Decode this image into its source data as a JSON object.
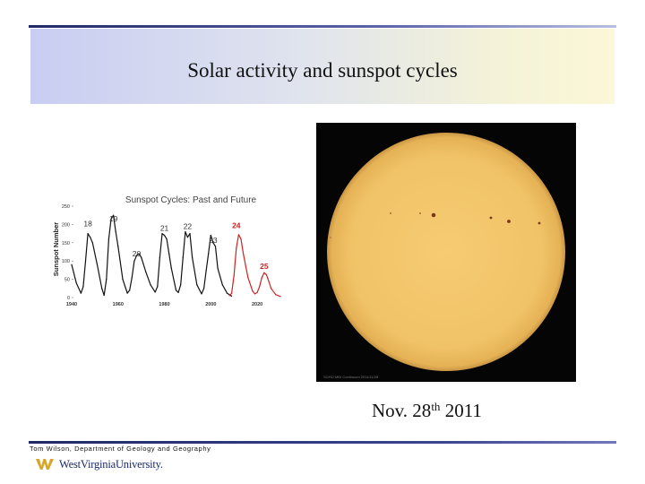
{
  "slide": {
    "title": "Solar activity and sunspot cycles",
    "date_caption": {
      "prefix": "Nov. 28",
      "superscript": "th",
      "suffix": " 2011"
    },
    "footer": "Tom Wilson, Department of Geology and Geography",
    "logo_text": "WestVirginiaUniversity.",
    "photo_caption": "SOHO MDI Continuum 2011/11/28"
  },
  "colors": {
    "title_band_left": "#c9cdf2",
    "title_band_right": "#fbf7d7",
    "rule": "#1f2a66",
    "sun": "#f4c76a",
    "observed_series": "#111111",
    "predicted_series": "#cc2222",
    "logo": "#1c2a6e"
  },
  "chart_data": {
    "type": "line",
    "title": "Sunspot Cycles: Past and Future",
    "xlabel": "",
    "ylabel": "Sunspot Number",
    "xlim": [
      1940,
      2030
    ],
    "ylim": [
      0,
      250
    ],
    "x_ticks": [
      1940,
      1960,
      1980,
      2000,
      2020
    ],
    "y_ticks": [
      0,
      50,
      100,
      150,
      200,
      250
    ],
    "grid": false,
    "legend": "none",
    "annotations": [
      {
        "label": "18",
        "x": 1947,
        "y": 195,
        "color": "#333333"
      },
      {
        "label": "19",
        "x": 1958,
        "y": 208,
        "color": "#333333"
      },
      {
        "label": "20",
        "x": 1968,
        "y": 113,
        "color": "#333333"
      },
      {
        "label": "21",
        "x": 1980,
        "y": 182,
        "color": "#333333"
      },
      {
        "label": "22",
        "x": 1990,
        "y": 187,
        "color": "#333333"
      },
      {
        "label": "23",
        "x": 2001,
        "y": 150,
        "color": "#333333"
      },
      {
        "label": "24",
        "x": 2011,
        "y": 190,
        "color": "#cc2222"
      },
      {
        "label": "25",
        "x": 2023,
        "y": 78,
        "color": "#cc2222"
      }
    ],
    "series": [
      {
        "kind": "observed",
        "x": [
          1940,
          1942,
          1944,
          1945,
          1946,
          1947,
          1948,
          1949,
          1951,
          1953,
          1954,
          1955,
          1956,
          1957,
          1958,
          1959,
          1960,
          1962,
          1964,
          1965,
          1966,
          1967,
          1968,
          1969,
          1970,
          1972,
          1974,
          1976,
          1977,
          1978,
          1979,
          1980,
          1981,
          1982,
          1983,
          1985,
          1986,
          1987,
          1988,
          1989,
          1990,
          1991,
          1992,
          1994,
          1996,
          1997,
          1998,
          1999,
          2000,
          2001,
          2002,
          2003,
          2005,
          2007,
          2009
        ],
        "y": [
          90,
          40,
          12,
          30,
          100,
          175,
          165,
          150,
          90,
          25,
          6,
          50,
          160,
          215,
          225,
          180,
          140,
          50,
          12,
          20,
          55,
          100,
          115,
          120,
          110,
          70,
          35,
          15,
          30,
          110,
          175,
          170,
          160,
          120,
          80,
          20,
          14,
          35,
          110,
          180,
          165,
          175,
          110,
          35,
          10,
          25,
          75,
          120,
          170,
          150,
          140,
          80,
          35,
          12,
          4
        ]
      },
      {
        "kind": "predicted",
        "x": [
          2008,
          2009,
          2010,
          2011,
          2012,
          2013,
          2014,
          2016,
          2018,
          2019,
          2020,
          2021,
          2022,
          2023,
          2024,
          2025,
          2026,
          2028,
          2030
        ],
        "y": [
          5,
          12,
          60,
          135,
          172,
          160,
          120,
          55,
          18,
          10,
          14,
          30,
          55,
          68,
          62,
          44,
          25,
          8,
          3
        ]
      }
    ]
  }
}
